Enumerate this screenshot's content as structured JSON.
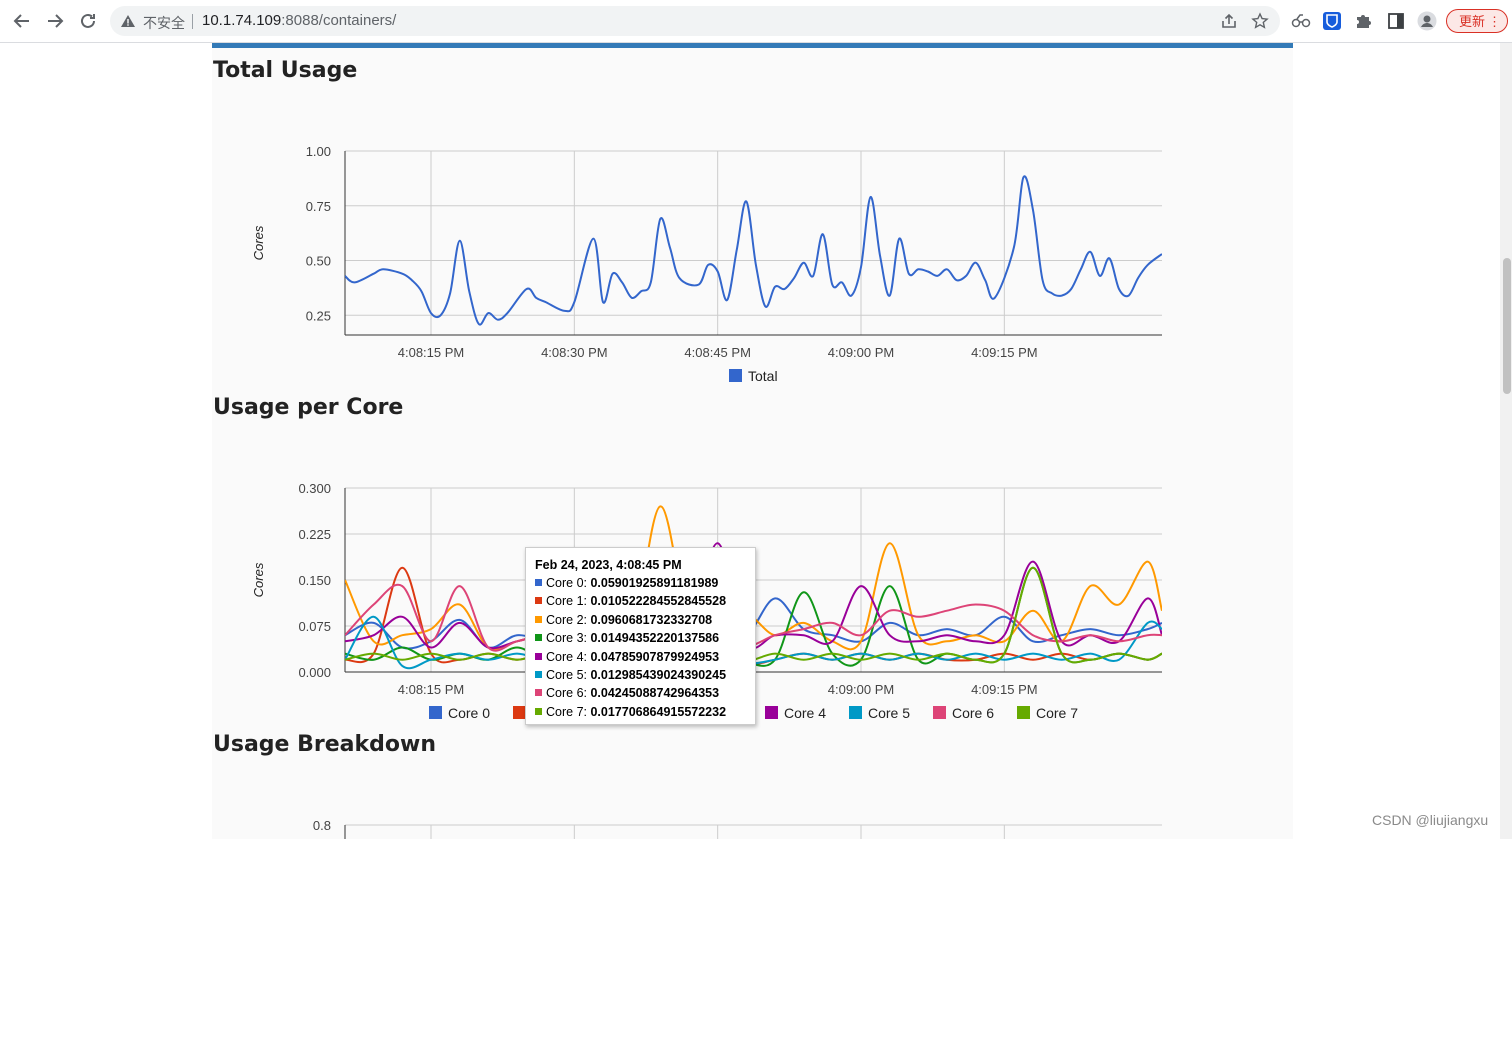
{
  "browser": {
    "security_label": "不安全",
    "url_host": "10.1.74.109",
    "url_rest": ":8088/containers/",
    "update_label": "更新",
    "update_menu": "⋮",
    "icons": [
      "back-icon",
      "forward-icon",
      "reload-icon",
      "warning-icon",
      "share-icon",
      "star-icon",
      "extension-icon",
      "bitwarden-icon",
      "puzzle-icon",
      "sidepanel-icon",
      "profile-icon"
    ]
  },
  "page": {
    "accent_color": "#337ab7",
    "section_titles": {
      "total": "Total Usage",
      "per_core": "Usage per Core",
      "breakdown": "Usage Breakdown"
    }
  },
  "tooltip": {
    "title": "Feb 24, 2023, 4:08:45 PM",
    "rows": [
      {
        "label": "Core 0:",
        "value": "0.05901925891181989",
        "color": "#3366cc"
      },
      {
        "label": "Core 1:",
        "value": "0.010522284552845528",
        "color": "#dc3912"
      },
      {
        "label": "Core 2:",
        "value": "0.0960681732332708",
        "color": "#ff9900"
      },
      {
        "label": "Core 3:",
        "value": "0.01494352220137586",
        "color": "#109618"
      },
      {
        "label": "Core 4:",
        "value": "0.04785907879924953",
        "color": "#990099"
      },
      {
        "label": "Core 5:",
        "value": "0.012985439024390245",
        "color": "#0099c6"
      },
      {
        "label": "Core 6:",
        "value": "0.04245088742964353",
        "color": "#dd4477"
      },
      {
        "label": "Core 7:",
        "value": "0.017706864915572232",
        "color": "#66aa00"
      }
    ]
  },
  "watermark": "CSDN @liujiangxu",
  "chart_data": [
    {
      "type": "line",
      "title": "Total Usage",
      "ylabel": "Cores",
      "xlabel": "",
      "x_tick_labels": [
        "4:08:15 PM",
        "4:08:30 PM",
        "4:08:45 PM",
        "4:09:00 PM",
        "4:09:15 PM"
      ],
      "y_tick_labels": [
        "0.25",
        "0.50",
        "0.75",
        "1.00"
      ],
      "ylim": [
        0.16,
        1.0
      ],
      "xlim_seconds": [
        0,
        85.5
      ],
      "grid": true,
      "legend_position": "bottom",
      "series": [
        {
          "name": "Total",
          "color": "#3366cc",
          "x": [
            0,
            1,
            3,
            4,
            6,
            7,
            8,
            9,
            10,
            11,
            12,
            13,
            14,
            15,
            16,
            17,
            19,
            20,
            21,
            23,
            24,
            26,
            27,
            28,
            29,
            30,
            31,
            32,
            33,
            34,
            35,
            37,
            38,
            39,
            40,
            41,
            42,
            43,
            44,
            45,
            46,
            47,
            48,
            49,
            50,
            51,
            52,
            53,
            54,
            55,
            56,
            57,
            58,
            59,
            60,
            61,
            62,
            63,
            64,
            65,
            66,
            67,
            68,
            70,
            71,
            72,
            73,
            74,
            75,
            76,
            77,
            78,
            79,
            80,
            81,
            82,
            83,
            84,
            85.5
          ],
          "y": [
            0.43,
            0.4,
            0.44,
            0.46,
            0.44,
            0.41,
            0.36,
            0.26,
            0.25,
            0.35,
            0.59,
            0.36,
            0.21,
            0.26,
            0.23,
            0.26,
            0.37,
            0.33,
            0.31,
            0.27,
            0.31,
            0.6,
            0.31,
            0.44,
            0.4,
            0.33,
            0.36,
            0.4,
            0.69,
            0.56,
            0.42,
            0.39,
            0.48,
            0.45,
            0.32,
            0.55,
            0.77,
            0.48,
            0.29,
            0.38,
            0.37,
            0.42,
            0.49,
            0.43,
            0.62,
            0.39,
            0.4,
            0.34,
            0.47,
            0.79,
            0.52,
            0.34,
            0.6,
            0.44,
            0.46,
            0.45,
            0.43,
            0.46,
            0.41,
            0.43,
            0.49,
            0.41,
            0.33,
            0.56,
            0.88,
            0.73,
            0.41,
            0.35,
            0.34,
            0.37,
            0.46,
            0.54,
            0.43,
            0.51,
            0.37,
            0.34,
            0.42,
            0.48,
            0.53
          ]
        }
      ]
    },
    {
      "type": "line",
      "title": "Usage per Core",
      "ylabel": "Cores",
      "xlabel": "",
      "x_tick_labels": [
        "4:08:15 PM",
        "4:08:30 PM",
        "4:08:45 PM",
        "4:09:00 PM",
        "4:09:15 PM"
      ],
      "y_tick_labels": [
        "0.000",
        "0.075",
        "0.150",
        "0.225",
        "0.300"
      ],
      "ylim": [
        0,
        0.3
      ],
      "xlim_seconds": [
        0,
        85.5
      ],
      "grid": true,
      "legend_position": "bottom",
      "x": [
        0,
        3,
        6,
        9,
        12,
        15,
        18,
        21,
        24,
        27,
        30,
        33,
        36,
        39,
        42,
        45,
        48,
        51,
        54,
        57,
        60,
        63,
        66,
        69,
        72,
        75,
        78,
        81,
        84,
        85.5
      ],
      "series": [
        {
          "name": "Core 0",
          "color": "#3366cc",
          "values": [
            0.06,
            0.08,
            0.04,
            0.05,
            0.085,
            0.04,
            0.06,
            0.05,
            0.055,
            0.07,
            0.06,
            0.05,
            0.055,
            0.065,
            0.059,
            0.12,
            0.07,
            0.06,
            0.05,
            0.08,
            0.06,
            0.07,
            0.06,
            0.09,
            0.05,
            0.06,
            0.07,
            0.06,
            0.07,
            0.08
          ]
        },
        {
          "name": "Core 1",
          "color": "#dc3912",
          "values": [
            0.02,
            0.03,
            0.17,
            0.03,
            0.02,
            0.03,
            0.02,
            0.03,
            0.02,
            0.03,
            0.02,
            0.02,
            0.03,
            0.02,
            0.011,
            0.02,
            0.03,
            0.02,
            0.03,
            0.02,
            0.03,
            0.02,
            0.02,
            0.03,
            0.02,
            0.03,
            0.02,
            0.03,
            0.02,
            0.03
          ]
        },
        {
          "name": "Core 2",
          "color": "#ff9900",
          "values": [
            0.15,
            0.05,
            0.06,
            0.07,
            0.11,
            0.04,
            0.05,
            0.06,
            0.05,
            0.06,
            0.06,
            0.27,
            0.08,
            0.09,
            0.096,
            0.06,
            0.08,
            0.05,
            0.05,
            0.21,
            0.06,
            0.05,
            0.06,
            0.05,
            0.1,
            0.05,
            0.14,
            0.11,
            0.18,
            0.1
          ]
        },
        {
          "name": "Core 3",
          "color": "#109618",
          "values": [
            0.03,
            0.02,
            0.04,
            0.02,
            0.03,
            0.02,
            0.04,
            0.02,
            0.03,
            0.02,
            0.04,
            0.02,
            0.03,
            0.02,
            0.015,
            0.02,
            0.13,
            0.03,
            0.02,
            0.14,
            0.02,
            0.03,
            0.02,
            0.03,
            0.17,
            0.03,
            0.02,
            0.03,
            0.02,
            0.03
          ]
        },
        {
          "name": "Core 4",
          "color": "#990099",
          "values": [
            0.05,
            0.06,
            0.09,
            0.04,
            0.08,
            0.04,
            0.05,
            0.06,
            0.05,
            0.06,
            0.06,
            0.05,
            0.06,
            0.21,
            0.048,
            0.06,
            0.06,
            0.05,
            0.14,
            0.06,
            0.05,
            0.06,
            0.05,
            0.06,
            0.18,
            0.05,
            0.06,
            0.05,
            0.12,
            0.06
          ]
        },
        {
          "name": "Core 5",
          "color": "#0099c6",
          "values": [
            0.02,
            0.09,
            0.01,
            0.02,
            0.03,
            0.02,
            0.03,
            0.02,
            0.03,
            0.02,
            0.03,
            0.02,
            0.03,
            0.02,
            0.013,
            0.02,
            0.03,
            0.02,
            0.03,
            0.02,
            0.03,
            0.02,
            0.03,
            0.02,
            0.03,
            0.02,
            0.03,
            0.02,
            0.08,
            0.07
          ]
        },
        {
          "name": "Core 6",
          "color": "#dd4477",
          "values": [
            0.06,
            0.11,
            0.14,
            0.05,
            0.14,
            0.04,
            0.05,
            0.06,
            0.05,
            0.06,
            0.05,
            0.06,
            0.05,
            0.06,
            0.042,
            0.06,
            0.07,
            0.08,
            0.06,
            0.1,
            0.09,
            0.1,
            0.11,
            0.1,
            0.06,
            0.05,
            0.06,
            0.05,
            0.06,
            0.06
          ]
        },
        {
          "name": "Core 7",
          "color": "#66aa00",
          "values": [
            0.02,
            0.03,
            0.02,
            0.03,
            0.02,
            0.03,
            0.02,
            0.03,
            0.02,
            0.03,
            0.02,
            0.03,
            0.02,
            0.03,
            0.018,
            0.03,
            0.02,
            0.03,
            0.02,
            0.03,
            0.02,
            0.03,
            0.02,
            0.03,
            0.17,
            0.03,
            0.02,
            0.03,
            0.02,
            0.03
          ]
        }
      ]
    },
    {
      "type": "line",
      "title": "Usage Breakdown",
      "y_tick_labels": [
        "0.8"
      ],
      "ylim": [
        0,
        0.8
      ],
      "grid": true,
      "series": []
    }
  ]
}
